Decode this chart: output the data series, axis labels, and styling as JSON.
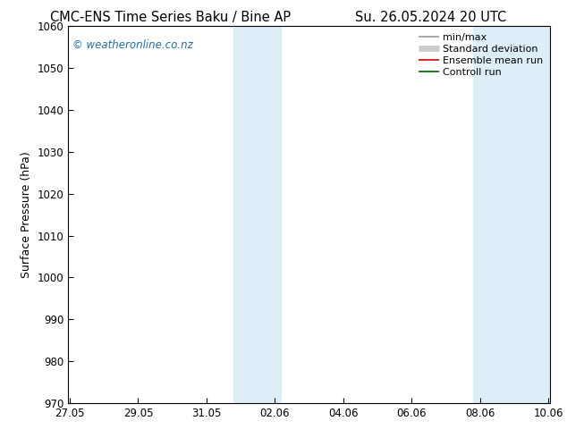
{
  "title_left": "CMC-ENS Time Series Baku / Bine AP",
  "title_right": "Su. 26.05.2024 20 UTC",
  "ylabel": "Surface Pressure (hPa)",
  "ylim": [
    970,
    1060
  ],
  "yticks": [
    970,
    980,
    990,
    1000,
    1010,
    1020,
    1030,
    1040,
    1050,
    1060
  ],
  "x_tick_labels": [
    "27.05",
    "29.05",
    "31.05",
    "02.06",
    "04.06",
    "06.06",
    "08.06",
    "10.06"
  ],
  "x_tick_positions": [
    0,
    2,
    4,
    6,
    8,
    10,
    12,
    14
  ],
  "xlim": [
    -0.05,
    14.05
  ],
  "shaded_bands": [
    {
      "x_start": 4.8,
      "x_end": 6.2,
      "color": "#ddeef8"
    },
    {
      "x_start": 11.8,
      "x_end": 14.05,
      "color": "#ddeef8"
    }
  ],
  "watermark_text": "© weatheronline.co.nz",
  "watermark_color": "#1a6fa8",
  "legend_items": [
    {
      "label": "min/max",
      "color": "#999999",
      "lw": 1.2
    },
    {
      "label": "Standard deviation",
      "color": "#cccccc",
      "lw": 5
    },
    {
      "label": "Ensemble mean run",
      "color": "#dd0000",
      "lw": 1.2
    },
    {
      "label": "Controll run",
      "color": "#006600",
      "lw": 1.2
    }
  ],
  "background_color": "#ffffff",
  "title_fontsize": 10.5,
  "axis_label_fontsize": 9,
  "tick_fontsize": 8.5,
  "legend_fontsize": 8
}
